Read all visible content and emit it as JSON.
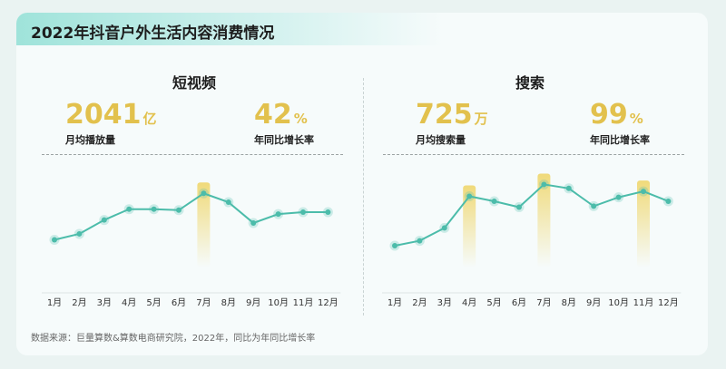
{
  "title": "2022年抖音户外生活内容消费情况",
  "left_panel": {
    "title": "短视频",
    "stat1": {
      "value": "2041",
      "unit": "亿",
      "label": "月均播放量"
    },
    "stat2": {
      "value": "42",
      "unit": "%",
      "label": "年同比增长率"
    }
  },
  "right_panel": {
    "title": "搜索",
    "stat1": {
      "value": "725",
      "unit": "万",
      "label": "月均搜索量"
    },
    "stat2": {
      "value": "99",
      "unit": "%",
      "label": "年同比增长率"
    }
  },
  "footnote": "数据来源：巨量算数&算数电商研究院，2022年，同比为年同比增长率",
  "colors": {
    "line": "#4cbcaa",
    "highlight": "#f0da7a",
    "stat": "#e2c14d"
  },
  "chart_data": [
    {
      "type": "line",
      "title": "短视频",
      "categories": [
        "1月",
        "2月",
        "3月",
        "4月",
        "5月",
        "6月",
        "7月",
        "8月",
        "9月",
        "10月",
        "11月",
        "12月"
      ],
      "values": [
        28,
        34,
        48,
        59,
        59,
        58,
        75,
        66,
        45,
        54,
        56,
        56
      ],
      "ylim": [
        0,
        100
      ],
      "highlight": [
        "7月"
      ]
    },
    {
      "type": "line",
      "title": "搜索",
      "categories": [
        "1月",
        "2月",
        "3月",
        "4月",
        "5月",
        "6月",
        "7月",
        "8月",
        "9月",
        "10月",
        "11月",
        "12月"
      ],
      "values": [
        22,
        27,
        40,
        72,
        67,
        61,
        84,
        80,
        62,
        71,
        77,
        67
      ],
      "ylim": [
        0,
        100
      ],
      "highlight": [
        "4月",
        "7月",
        "11月"
      ]
    }
  ]
}
